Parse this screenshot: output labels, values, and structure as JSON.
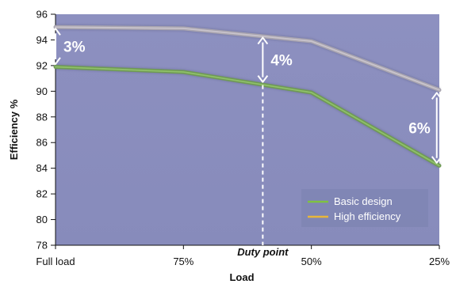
{
  "chart_data": {
    "type": "line",
    "categories": [
      "Full load",
      "75%",
      "50%",
      "25%"
    ],
    "series": [
      {
        "name": "Basic design",
        "values": [
          91.9,
          91.5,
          89.9,
          84.2
        ],
        "color": "#7fc241"
      },
      {
        "name": "High efficiency",
        "values": [
          95.0,
          94.9,
          93.9,
          90.1
        ],
        "color": "#e8b63a"
      }
    ],
    "xlabel": "Load",
    "ylabel": "Efficiency %",
    "ylim": [
      78,
      96
    ],
    "yticks": [
      78,
      80,
      82,
      84,
      86,
      88,
      90,
      92,
      94,
      96
    ],
    "plot_background": "#8b8fbf",
    "legend_position": "bottom-right",
    "annotations": [
      {
        "label": "3%",
        "x": 0.0,
        "from": 92.0,
        "to": 95.0
      },
      {
        "label": "4%",
        "x": 1.62,
        "from": 90.6,
        "to": 94.3
      },
      {
        "label": "6%",
        "x": 2.98,
        "from": 84.3,
        "to": 90.0
      }
    ],
    "duty_point": {
      "label": "Duty point",
      "x": 1.62
    }
  }
}
